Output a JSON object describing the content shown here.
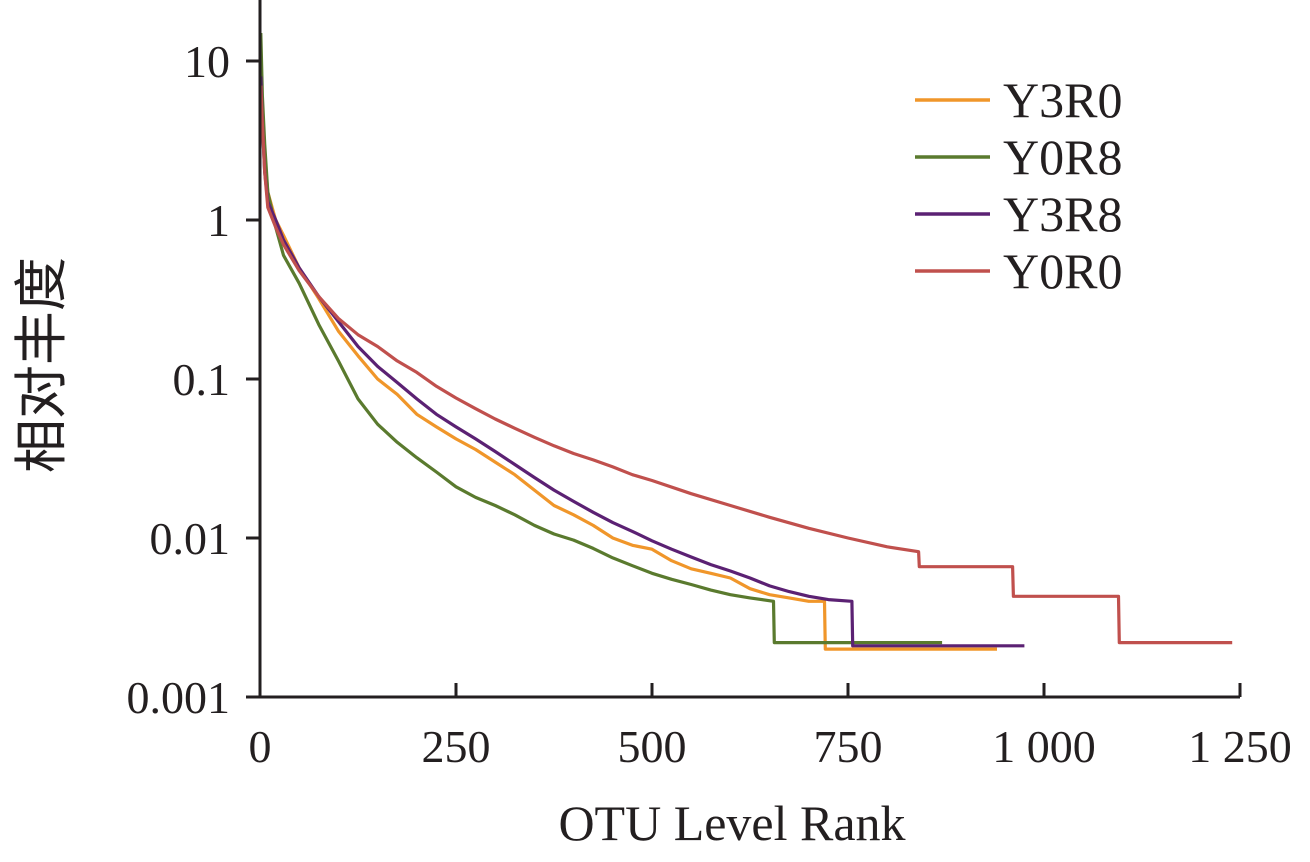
{
  "chart_data": {
    "type": "line",
    "title": "",
    "xlabel": "OTU Level Rank",
    "ylabel": "相对丰度",
    "y_scale": "log",
    "xlim": [
      0,
      1250
    ],
    "ylim": [
      0.001,
      20
    ],
    "grid": false,
    "legend_position": "top-right",
    "x_ticks": [
      0,
      250,
      500,
      750,
      1000,
      1250
    ],
    "x_tick_labels": [
      "0",
      "250",
      "500",
      "750",
      "1 000",
      "1 250"
    ],
    "y_ticks": [
      0.001,
      0.01,
      0.1,
      1,
      10
    ],
    "y_tick_labels": [
      "0.001",
      "0.01",
      "0.1",
      "1",
      "10"
    ],
    "series": [
      {
        "name": "Y3R0",
        "color": "#f0962a",
        "points": [
          [
            1,
            9
          ],
          [
            3,
            5
          ],
          [
            6,
            2.5
          ],
          [
            10,
            1.5
          ],
          [
            20,
            1.0
          ],
          [
            30,
            0.8
          ],
          [
            50,
            0.5
          ],
          [
            75,
            0.32
          ],
          [
            100,
            0.2
          ],
          [
            125,
            0.14
          ],
          [
            150,
            0.1
          ],
          [
            175,
            0.08
          ],
          [
            200,
            0.06
          ],
          [
            225,
            0.05
          ],
          [
            250,
            0.042
          ],
          [
            275,
            0.036
          ],
          [
            300,
            0.03
          ],
          [
            325,
            0.025
          ],
          [
            350,
            0.02
          ],
          [
            375,
            0.016
          ],
          [
            400,
            0.014
          ],
          [
            425,
            0.012
          ],
          [
            450,
            0.01
          ],
          [
            475,
            0.009
          ],
          [
            500,
            0.0085
          ],
          [
            525,
            0.0072
          ],
          [
            550,
            0.0064
          ],
          [
            575,
            0.006
          ],
          [
            600,
            0.0056
          ],
          [
            625,
            0.0048
          ],
          [
            650,
            0.0044
          ],
          [
            675,
            0.0042
          ],
          [
            700,
            0.004
          ],
          [
            720,
            0.004
          ],
          [
            721,
            0.002
          ],
          [
            940,
            0.002
          ]
        ]
      },
      {
        "name": "Y0R8",
        "color": "#5a7a2e",
        "points": [
          [
            1,
            15
          ],
          [
            3,
            6
          ],
          [
            6,
            3
          ],
          [
            10,
            1.5
          ],
          [
            20,
            0.9
          ],
          [
            30,
            0.6
          ],
          [
            50,
            0.4
          ],
          [
            75,
            0.22
          ],
          [
            100,
            0.13
          ],
          [
            125,
            0.075
          ],
          [
            150,
            0.052
          ],
          [
            175,
            0.04
          ],
          [
            200,
            0.032
          ],
          [
            225,
            0.026
          ],
          [
            250,
            0.021
          ],
          [
            275,
            0.018
          ],
          [
            300,
            0.016
          ],
          [
            325,
            0.014
          ],
          [
            350,
            0.012
          ],
          [
            375,
            0.0106
          ],
          [
            400,
            0.0097
          ],
          [
            425,
            0.0086
          ],
          [
            450,
            0.0075
          ],
          [
            475,
            0.0067
          ],
          [
            500,
            0.006
          ],
          [
            525,
            0.0055
          ],
          [
            550,
            0.0051
          ],
          [
            575,
            0.0047
          ],
          [
            600,
            0.0044
          ],
          [
            625,
            0.0042
          ],
          [
            655,
            0.004
          ],
          [
            656,
            0.0022
          ],
          [
            870,
            0.0022
          ]
        ]
      },
      {
        "name": "Y3R8",
        "color": "#5b2173",
        "points": [
          [
            1,
            8
          ],
          [
            3,
            4
          ],
          [
            6,
            2
          ],
          [
            10,
            1.3
          ],
          [
            20,
            1.0
          ],
          [
            30,
            0.75
          ],
          [
            50,
            0.5
          ],
          [
            75,
            0.33
          ],
          [
            100,
            0.23
          ],
          [
            125,
            0.16
          ],
          [
            150,
            0.12
          ],
          [
            175,
            0.095
          ],
          [
            200,
            0.075
          ],
          [
            225,
            0.06
          ],
          [
            250,
            0.05
          ],
          [
            275,
            0.042
          ],
          [
            300,
            0.035
          ],
          [
            325,
            0.029
          ],
          [
            350,
            0.024
          ],
          [
            375,
            0.02
          ],
          [
            400,
            0.017
          ],
          [
            425,
            0.0145
          ],
          [
            450,
            0.0125
          ],
          [
            475,
            0.011
          ],
          [
            500,
            0.0096
          ],
          [
            525,
            0.0085
          ],
          [
            550,
            0.0076
          ],
          [
            575,
            0.0068
          ],
          [
            600,
            0.0062
          ],
          [
            625,
            0.0056
          ],
          [
            650,
            0.005
          ],
          [
            675,
            0.0046
          ],
          [
            700,
            0.0043
          ],
          [
            725,
            0.0041
          ],
          [
            755,
            0.004
          ],
          [
            756,
            0.0021
          ],
          [
            975,
            0.0021
          ]
        ]
      },
      {
        "name": "Y0R0",
        "color": "#c0504d",
        "points": [
          [
            1,
            7
          ],
          [
            3,
            4
          ],
          [
            6,
            2
          ],
          [
            10,
            1.2
          ],
          [
            20,
            0.9
          ],
          [
            30,
            0.7
          ],
          [
            50,
            0.48
          ],
          [
            75,
            0.33
          ],
          [
            100,
            0.24
          ],
          [
            125,
            0.19
          ],
          [
            150,
            0.16
          ],
          [
            175,
            0.13
          ],
          [
            200,
            0.11
          ],
          [
            225,
            0.09
          ],
          [
            250,
            0.076
          ],
          [
            275,
            0.065
          ],
          [
            300,
            0.056
          ],
          [
            325,
            0.049
          ],
          [
            350,
            0.043
          ],
          [
            375,
            0.038
          ],
          [
            400,
            0.034
          ],
          [
            425,
            0.031
          ],
          [
            450,
            0.028
          ],
          [
            475,
            0.025
          ],
          [
            500,
            0.023
          ],
          [
            550,
            0.019
          ],
          [
            600,
            0.016
          ],
          [
            650,
            0.0135
          ],
          [
            700,
            0.0115
          ],
          [
            750,
            0.01
          ],
          [
            800,
            0.0088
          ],
          [
            840,
            0.0082
          ],
          [
            841,
            0.0066
          ],
          [
            960,
            0.0066
          ],
          [
            961,
            0.0043
          ],
          [
            1095,
            0.0043
          ],
          [
            1096,
            0.0022
          ],
          [
            1240,
            0.0022
          ]
        ]
      }
    ]
  }
}
